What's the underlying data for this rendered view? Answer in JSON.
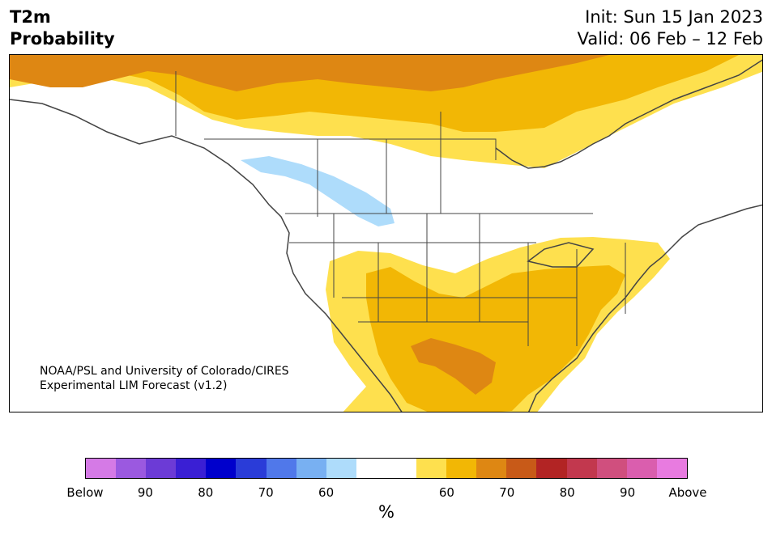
{
  "title": {
    "left_line1": "T2m",
    "left_line2": "Probability",
    "right_line1": "Init: Sun 15 Jan 2023",
    "right_line2": "Valid: 06 Feb – 12 Feb"
  },
  "credit": {
    "line1": "NOAA/PSL and University of Colorado/CIRES",
    "line2": "Experimental LIM Forecast (v1.2)"
  },
  "colorbar": {
    "unit": "%",
    "colors": [
      "#d57ae6",
      "#9b59e0",
      "#6c3bd6",
      "#3a1fd4",
      "#0000cc",
      "#2a3cd8",
      "#5078ea",
      "#78b0f2",
      "#aedcfb",
      "#ffffff",
      "#ffffff",
      "#fee04e",
      "#f2b705",
      "#de8713",
      "#c85a18",
      "#b22424",
      "#c2384e",
      "#d04f7e",
      "#da5eae",
      "#e87be0"
    ],
    "ticks": [
      "Below",
      "90",
      "80",
      "70",
      "60",
      "60",
      "70",
      "80",
      "90",
      "Above"
    ]
  },
  "map": {
    "colors": {
      "above_60": "#fee04e",
      "above_65": "#f2b705",
      "above_70": "#de8713",
      "below_60": "#aedcfb",
      "coast": "#444444"
    }
  }
}
